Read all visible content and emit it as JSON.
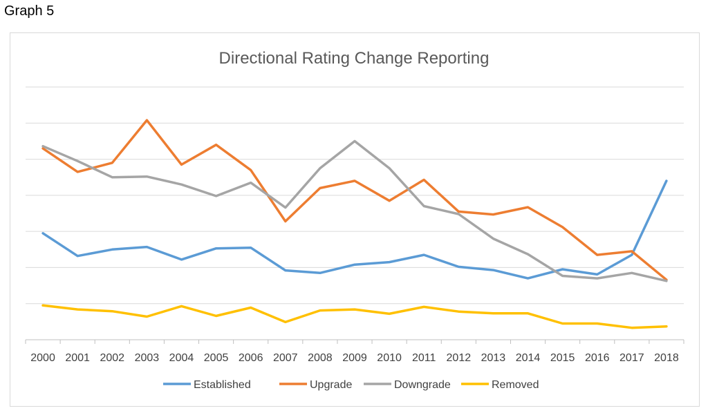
{
  "caption": "Graph 5",
  "chart_data": {
    "type": "line",
    "title": "Directional Rating Change Reporting",
    "xlabel": "",
    "ylabel": "",
    "categories": [
      "2000",
      "2001",
      "2002",
      "2003",
      "2004",
      "2005",
      "2006",
      "2007",
      "2008",
      "2009",
      "2010",
      "2011",
      "2012",
      "2013",
      "2014",
      "2015",
      "2016",
      "2017",
      "2018"
    ],
    "ylim": [
      0,
      7
    ],
    "grid": true,
    "legend": "bottom",
    "series": [
      {
        "name": "Established",
        "color": "#5b9bd5",
        "values": [
          2.95,
          2.32,
          2.5,
          2.57,
          2.22,
          2.53,
          2.55,
          1.92,
          1.85,
          2.08,
          2.15,
          2.35,
          2.02,
          1.93,
          1.7,
          1.95,
          1.81,
          2.35,
          4.4
        ]
      },
      {
        "name": "Upgrade",
        "color": "#ed7d31",
        "values": [
          5.3,
          4.65,
          4.9,
          6.08,
          4.85,
          5.4,
          4.7,
          3.28,
          4.2,
          4.4,
          3.85,
          4.43,
          3.55,
          3.47,
          3.67,
          3.12,
          2.35,
          2.45,
          1.66
        ]
      },
      {
        "name": "Downgrade",
        "color": "#a5a5a5",
        "values": [
          5.36,
          4.95,
          4.5,
          4.52,
          4.3,
          3.98,
          4.35,
          3.66,
          4.75,
          5.5,
          4.75,
          3.7,
          3.48,
          2.8,
          2.37,
          1.77,
          1.7,
          1.85,
          1.63
        ]
      },
      {
        "name": "Removed",
        "color": "#ffc000",
        "values": [
          0.95,
          0.84,
          0.79,
          0.64,
          0.93,
          0.66,
          0.89,
          0.49,
          0.81,
          0.84,
          0.72,
          0.91,
          0.78,
          0.73,
          0.73,
          0.45,
          0.45,
          0.33,
          0.37
        ]
      }
    ]
  }
}
